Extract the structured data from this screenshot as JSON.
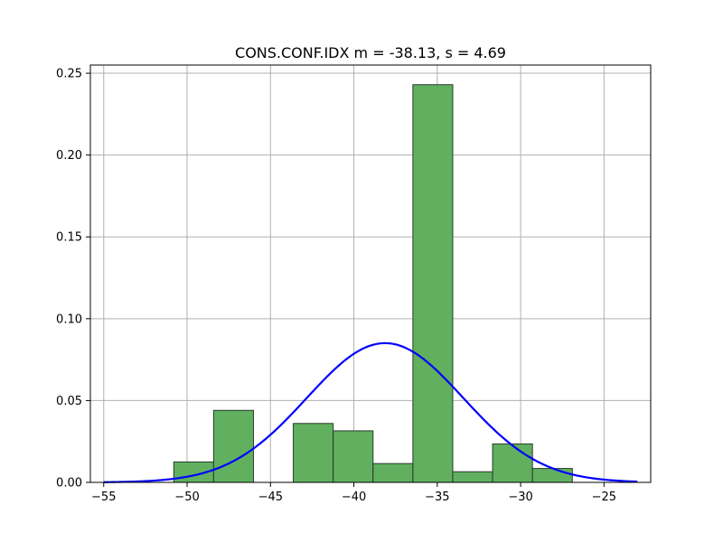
{
  "chart_data": {
    "type": "bar",
    "title": "CONS.CONF.IDX  m = -38.13,  s = 4.69",
    "xlabel": "",
    "ylabel": "",
    "xlim": [
      -55.8,
      -22.2
    ],
    "ylim": [
      0,
      0.255
    ],
    "grid": true,
    "xticks": [
      -55,
      -50,
      -45,
      -40,
      -35,
      -30,
      -25
    ],
    "xtick_labels": [
      "−55",
      "−50",
      "−45",
      "−40",
      "−35",
      "−30",
      "−25"
    ],
    "yticks": [
      0.0,
      0.05,
      0.1,
      0.15,
      0.2,
      0.25
    ],
    "ytick_labels": [
      "0.00",
      "0.05",
      "0.10",
      "0.15",
      "0.20",
      "0.25"
    ],
    "histogram": {
      "bin_edges": [
        -50.8,
        -48.41,
        -46.02,
        -43.63,
        -41.24,
        -38.85,
        -36.46,
        -34.07,
        -31.68,
        -29.29,
        -26.9
      ],
      "density": [
        0.0125,
        0.044,
        0.0,
        0.036,
        0.0315,
        0.0115,
        0.243,
        0.0065,
        0.0235,
        0.0085
      ],
      "color": "#60b060",
      "edgecolor": "#2a3a2a"
    },
    "normal_curve": {
      "mean": -38.13,
      "std": 4.69,
      "x_range": [
        -55,
        -23
      ],
      "color": "#0000ff"
    }
  }
}
